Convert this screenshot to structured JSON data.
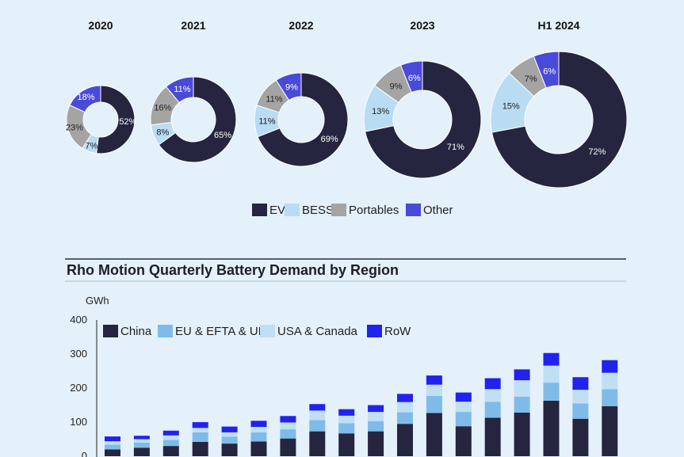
{
  "colors": {
    "EV": "#25253f",
    "BESS": "#b9dcf2",
    "Portables": "#a4a4a4",
    "Other": "#4a4ad8",
    "China": "#25253f",
    "EU & EFTA & UK": "#7fbbe9",
    "USA & Canada": "#bfdff4",
    "RoW": "#2222ee"
  },
  "chart_data": [
    {
      "type": "pie",
      "variant": "donut",
      "categories": [
        "EV",
        "BESS",
        "Portables",
        "Other"
      ],
      "legend": [
        "EV",
        "BESS",
        "Portables",
        "Other"
      ],
      "legend_placement": "bottom-center",
      "panels": [
        {
          "title": "2020",
          "values": [
            52,
            7,
            23,
            18
          ],
          "labels": [
            "52%",
            "7%",
            "23%",
            "18%"
          ]
        },
        {
          "title": "2021",
          "values": [
            65,
            8,
            16,
            11
          ],
          "labels": [
            "65%",
            "8%",
            "16%",
            "11%"
          ]
        },
        {
          "title": "2022",
          "values": [
            69,
            11,
            11,
            9
          ],
          "labels": [
            "69%",
            "11%",
            "11%",
            "9%"
          ]
        },
        {
          "title": "2023",
          "values": [
            71,
            13,
            9,
            6
          ],
          "labels": [
            "71%",
            "13%",
            "9%",
            "6%"
          ]
        },
        {
          "title": "H1 2024",
          "values": [
            72,
            15,
            7,
            6
          ],
          "labels": [
            "72%",
            "15%",
            "7%",
            "6%"
          ]
        }
      ]
    },
    {
      "type": "bar",
      "stacked": true,
      "title": "Rho Motion Quarterly Battery Demand by Region",
      "ylabel": "GWh",
      "ylim": [
        0,
        400
      ],
      "yticks": [
        0,
        100,
        200,
        300,
        400
      ],
      "legend_placement": "top-left",
      "grid": false,
      "categories": [
        "",
        "",
        "",
        "",
        "",
        "",
        "",
        "",
        "",
        "",
        "",
        "",
        "",
        "",
        "",
        "",
        "",
        ""
      ],
      "series": [
        {
          "name": "China",
          "values": [
            20,
            25,
            30,
            42,
            37,
            43,
            52,
            73,
            67,
            73,
            95,
            127,
            88,
            113,
            128,
            163,
            110,
            147
          ]
        },
        {
          "name": "EU & EFTA & UK",
          "values": [
            14,
            15,
            18,
            28,
            20,
            27,
            27,
            33,
            30,
            30,
            34,
            50,
            42,
            47,
            47,
            53,
            45,
            50
          ]
        },
        {
          "name": "USA & Canada",
          "values": [
            10,
            10,
            13,
            13,
            13,
            16,
            20,
            28,
            22,
            27,
            30,
            33,
            30,
            37,
            48,
            50,
            40,
            48
          ]
        },
        {
          "name": "RoW",
          "values": [
            14,
            10,
            14,
            17,
            17,
            18,
            19,
            19,
            19,
            20,
            24,
            27,
            27,
            32,
            32,
            37,
            37,
            37
          ]
        }
      ]
    }
  ]
}
